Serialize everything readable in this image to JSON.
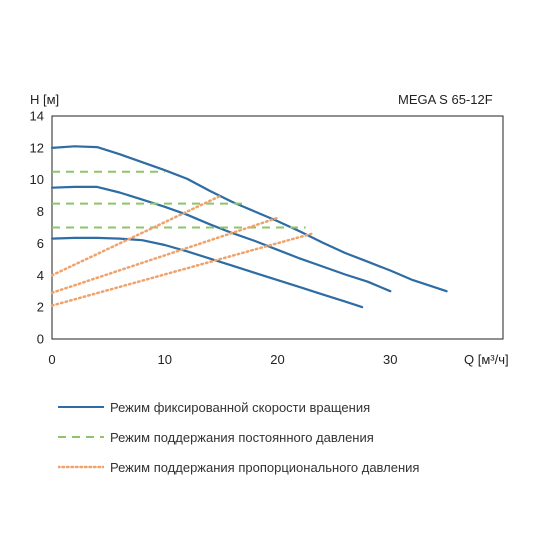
{
  "chart_data": {
    "type": "line",
    "title": "MEGA S 65-12F",
    "ylabel": "H [м]",
    "xlabel": "Q [м³/ч]",
    "xlim": [
      0,
      40
    ],
    "ylim": [
      0,
      14
    ],
    "xticks": [
      0,
      10,
      20,
      30
    ],
    "yticks": [
      0,
      2,
      4,
      6,
      8,
      10,
      12,
      14
    ],
    "grid": false,
    "legend_position": "bottom",
    "legend": [
      {
        "label": "Режим фиксированной скорости вращения",
        "color": "#2e6ca4",
        "style": "solid"
      },
      {
        "label": "Режим поддержания постоянного давления",
        "color": "#8fc46a",
        "style": "dashed"
      },
      {
        "label": "Режим поддержания пропорционального давления",
        "color": "#f0a26a",
        "style": "dotted"
      }
    ],
    "series": [
      {
        "group": "fixed",
        "color": "#2e6ca4",
        "style": "solid",
        "points": [
          [
            0,
            12.0
          ],
          [
            2,
            12.1
          ],
          [
            4,
            12.05
          ],
          [
            6,
            11.6
          ],
          [
            8,
            11.1
          ],
          [
            10,
            10.6
          ],
          [
            12,
            10.05
          ],
          [
            14,
            9.3
          ],
          [
            16,
            8.6
          ],
          [
            18,
            8.0
          ],
          [
            20,
            7.4
          ],
          [
            22,
            6.75
          ],
          [
            24,
            6.05
          ],
          [
            26,
            5.4
          ],
          [
            28,
            4.85
          ],
          [
            30,
            4.3
          ],
          [
            32,
            3.7
          ],
          [
            35,
            3.0
          ]
        ]
      },
      {
        "group": "fixed",
        "color": "#2e6ca4",
        "style": "solid",
        "points": [
          [
            0,
            9.5
          ],
          [
            2,
            9.55
          ],
          [
            4,
            9.55
          ],
          [
            6,
            9.2
          ],
          [
            8,
            8.75
          ],
          [
            10,
            8.3
          ],
          [
            12,
            7.8
          ],
          [
            14,
            7.2
          ],
          [
            16,
            6.65
          ],
          [
            18,
            6.15
          ],
          [
            20,
            5.6
          ],
          [
            22,
            5.05
          ],
          [
            24,
            4.55
          ],
          [
            26,
            4.05
          ],
          [
            28,
            3.6
          ],
          [
            30,
            3.0
          ]
        ]
      },
      {
        "group": "fixed",
        "color": "#2e6ca4",
        "style": "solid",
        "points": [
          [
            0,
            6.3
          ],
          [
            2,
            6.35
          ],
          [
            4,
            6.35
          ],
          [
            6,
            6.3
          ],
          [
            8,
            6.2
          ],
          [
            10,
            5.9
          ],
          [
            12,
            5.5
          ],
          [
            14,
            5.05
          ],
          [
            16,
            4.6
          ],
          [
            18,
            4.15
          ],
          [
            20,
            3.7
          ],
          [
            22,
            3.25
          ],
          [
            24,
            2.8
          ],
          [
            26,
            2.35
          ],
          [
            27.5,
            2.0
          ]
        ]
      },
      {
        "group": "constant",
        "color": "#8fc46a",
        "style": "dashed",
        "points": [
          [
            0,
            10.5
          ],
          [
            10,
            10.5
          ]
        ]
      },
      {
        "group": "constant",
        "color": "#8fc46a",
        "style": "dashed",
        "points": [
          [
            0,
            8.5
          ],
          [
            17,
            8.5
          ]
        ]
      },
      {
        "group": "constant",
        "color": "#8fc46a",
        "style": "dashed",
        "points": [
          [
            0,
            7.0
          ],
          [
            22.5,
            7.0
          ]
        ]
      },
      {
        "group": "proportional",
        "color": "#f0a26a",
        "style": "dotted",
        "points": [
          [
            0,
            4.0
          ],
          [
            15,
            9.0
          ]
        ]
      },
      {
        "group": "proportional",
        "color": "#f0a26a",
        "style": "dotted",
        "points": [
          [
            0,
            2.9
          ],
          [
            20,
            7.6
          ]
        ]
      },
      {
        "group": "proportional",
        "color": "#f0a26a",
        "style": "dotted",
        "points": [
          [
            0,
            2.1
          ],
          [
            23,
            6.6
          ]
        ]
      }
    ]
  }
}
